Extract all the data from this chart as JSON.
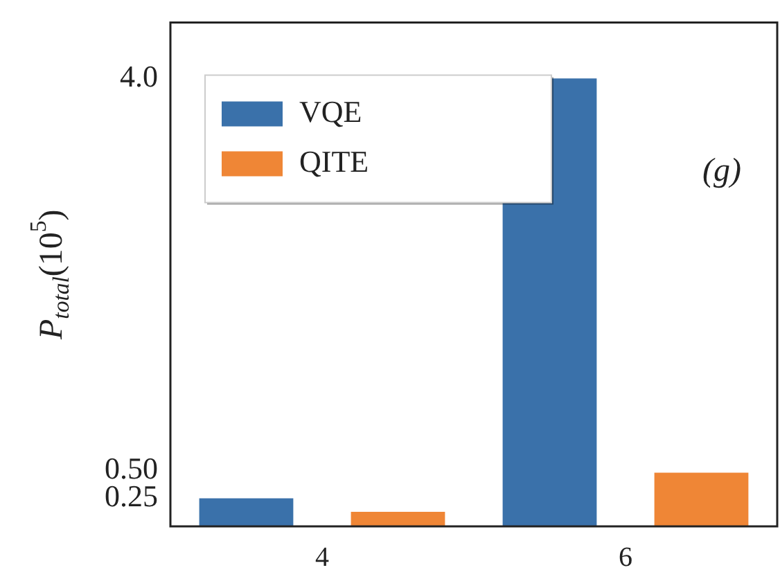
{
  "chart_data": {
    "type": "bar",
    "ylabel": "P$_{total}$(10$^{5}$)",
    "categories": [
      "4",
      "6"
    ],
    "series": [
      {
        "name": "VQE",
        "color": "#3a71aa",
        "values": [
          0.25,
          4.0
        ]
      },
      {
        "name": "QITE",
        "color": "#ef8636",
        "values": [
          0.13,
          0.48
        ]
      }
    ],
    "ylim": [
      0,
      4.5
    ],
    "yticks": [
      {
        "value": 0.25,
        "label": "0.25"
      },
      {
        "value": 0.5,
        "label": "0.50"
      },
      {
        "value": 4.0,
        "label": "4.0"
      }
    ],
    "grid": false,
    "legend": "top left",
    "annotations": [
      "(g)"
    ]
  }
}
